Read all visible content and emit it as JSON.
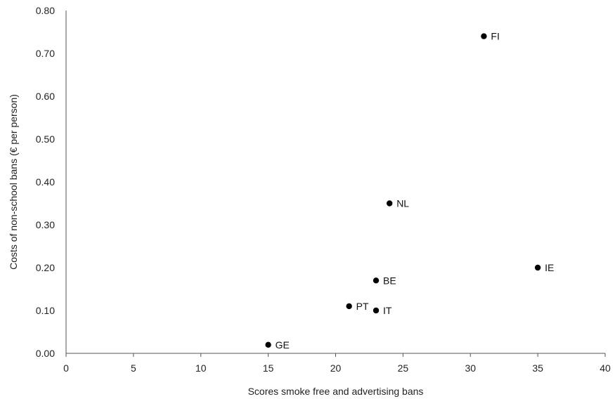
{
  "chart_data": {
    "type": "scatter",
    "title": "",
    "xlabel": "Scores smoke free and advertising bans",
    "ylabel": "Costs of non-school bans (€ per person)",
    "xlim": [
      0,
      40
    ],
    "ylim": [
      0,
      0.8
    ],
    "xticks": [
      "0",
      "5",
      "10",
      "15",
      "20",
      "25",
      "30",
      "35",
      "40"
    ],
    "yticks": [
      "0.00",
      "0.10",
      "0.20",
      "0.30",
      "0.40",
      "0.50",
      "0.60",
      "0.70",
      "0.80"
    ],
    "grid": false,
    "legend": "none",
    "point_color": "#000000",
    "points": [
      {
        "label": "FI",
        "x": 31,
        "y": 0.74
      },
      {
        "label": "NL",
        "x": 24,
        "y": 0.35
      },
      {
        "label": "IE",
        "x": 35,
        "y": 0.2
      },
      {
        "label": "BE",
        "x": 23,
        "y": 0.17
      },
      {
        "label": "PT",
        "x": 21,
        "y": 0.11
      },
      {
        "label": "IT",
        "x": 23,
        "y": 0.1
      },
      {
        "label": "GE",
        "x": 15,
        "y": 0.02
      }
    ]
  }
}
